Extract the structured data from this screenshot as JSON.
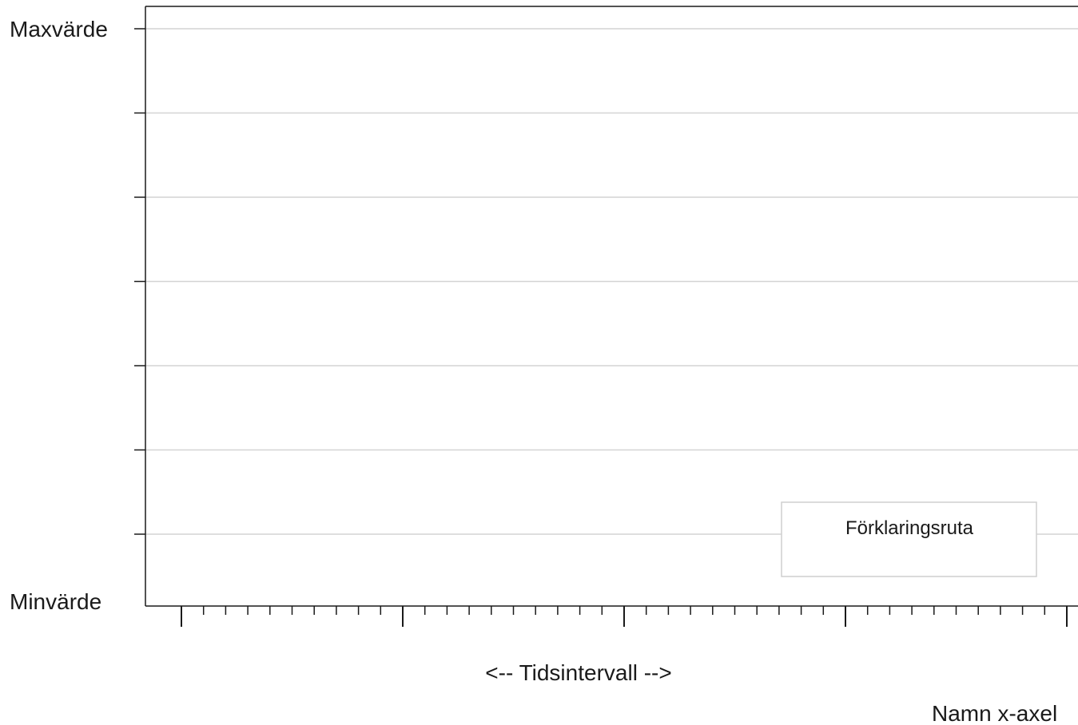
{
  "chart_data": {
    "type": "line",
    "title": "",
    "y_labels": {
      "max": "Maxvärde",
      "min": "Minvärde"
    },
    "x_interval_label": "<-- Tidsintervall -->",
    "xlabel": "Namn x-axel",
    "legend": {
      "label": "Förklaringsruta",
      "placement": "bottom-right"
    },
    "grid": true,
    "series": [],
    "y_gridlines": 7,
    "x_major_ticks": 5,
    "x_minor_per_major": 10
  }
}
